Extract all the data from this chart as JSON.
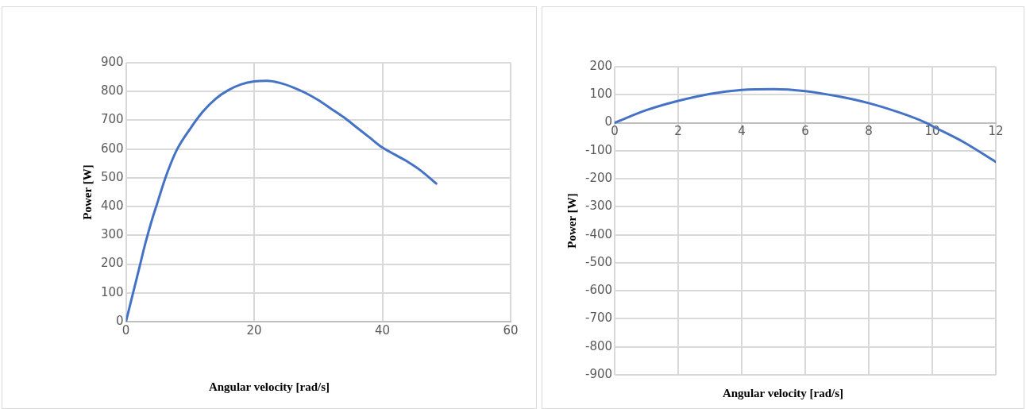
{
  "chart_data": [
    {
      "type": "line",
      "xlabel": "Angular velocity [rad/s]",
      "ylabel": "Power [W]",
      "xlim": [
        0,
        60
      ],
      "xticks": [
        0,
        20,
        40,
        60
      ],
      "ylim": [
        0,
        900
      ],
      "yticks": [
        0,
        100,
        200,
        300,
        400,
        500,
        600,
        700,
        800,
        900
      ],
      "grid": true,
      "legend": false,
      "marker": "none",
      "line_style": "solid",
      "series": [
        {
          "color": "#4472c4",
          "x": [
            0,
            1,
            2,
            3,
            4,
            5,
            6,
            7,
            8,
            10,
            12,
            14,
            16,
            18,
            20,
            22,
            24,
            26,
            28,
            30,
            32,
            34,
            36,
            38,
            40,
            42,
            44,
            46,
            48.4
          ],
          "values": [
            0,
            90,
            180,
            270,
            350,
            420,
            490,
            550,
            600,
            670,
            730,
            775,
            805,
            825,
            835,
            837,
            830,
            815,
            795,
            770,
            740,
            710,
            675,
            640,
            605,
            580,
            555,
            525,
            480
          ]
        }
      ]
    },
    {
      "type": "line",
      "xlabel": "Angular velocity [rad/s]",
      "ylabel": "Power [W]",
      "xlim": [
        0,
        12
      ],
      "xticks": [
        0,
        2,
        4,
        6,
        8,
        10,
        12
      ],
      "ylim": [
        -900,
        200
      ],
      "yticks": [
        -900,
        -800,
        -700,
        -600,
        -500,
        -400,
        -300,
        -200,
        -100,
        0,
        100,
        200
      ],
      "grid": true,
      "legend": false,
      "marker": "none",
      "line_style": "solid",
      "series": [
        {
          "color": "#4472c4",
          "x": [
            0,
            1,
            2,
            3,
            4,
            5,
            6,
            7,
            8,
            9,
            9.8,
            10,
            11,
            12
          ],
          "values": [
            0,
            45,
            78,
            103,
            117,
            120,
            113,
            95,
            70,
            35,
            0,
            -12,
            -70,
            -140
          ]
        }
      ]
    }
  ]
}
